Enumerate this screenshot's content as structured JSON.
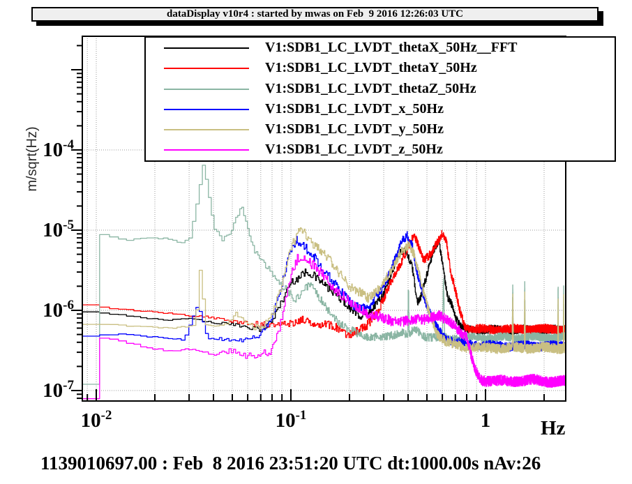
{
  "window": {
    "title": "dataDisplay v10r4 : started by mwas on Feb  9 2016 12:26:03 UTC"
  },
  "footer": {
    "status_line": "1139010697.00 : Feb  8 2016 23:51:20 UTC dt:1000.00s nAv:26"
  },
  "legend": {
    "entries": [
      {
        "label": "V1:SDB1_LC_LVDT_thetaX_50Hz__FFT",
        "color": "#000000"
      },
      {
        "label": "V1:SDB1_LC_LVDT_thetaY_50Hz",
        "color": "#ff0000"
      },
      {
        "label": "V1:SDB1_LC_LVDT_thetaZ_50Hz",
        "color": "#8ab5a3"
      },
      {
        "label": "V1:SDB1_LC_LVDT_x_50Hz",
        "color": "#0000ff"
      },
      {
        "label": "V1:SDB1_LC_LVDT_y_50Hz",
        "color": "#c9bf82"
      },
      {
        "label": "V1:SDB1_LC_LVDT_z_50Hz",
        "color": "#ff00ff"
      }
    ]
  },
  "axes": {
    "x": {
      "unit": "Hz",
      "ticks": [
        {
          "base": "10",
          "exp": "-2"
        },
        {
          "base": "10",
          "exp": "-1"
        },
        {
          "base": "1",
          "exp": ""
        }
      ]
    },
    "y": {
      "unit": "m/sqrt(Hz)",
      "ticks": [
        {
          "base": "10",
          "exp": "-4"
        },
        {
          "base": "10",
          "exp": "-5"
        },
        {
          "base": "10",
          "exp": "-6"
        },
        {
          "base": "10",
          "exp": "-7"
        }
      ]
    }
  },
  "chart_data": {
    "type": "line",
    "title": "",
    "xlabel": "Hz",
    "ylabel": "m/sqrt(Hz)",
    "xscale": "log",
    "yscale": "log",
    "xlim": [
      0.0085,
      2.58
    ],
    "ylim": [
      7.4e-08,
      0.0026
    ],
    "x_ticks_labeled": [
      0.01,
      0.1,
      1
    ],
    "y_ticks_labeled": [
      0.0001,
      1e-05,
      1e-06,
      1e-07
    ],
    "grid": "dotted gray: vertical lines at every log multiple, horizontal lines at decades",
    "legend_position": "top",
    "series": [
      {
        "name": "V1:SDB1_LC_LVDT_thetaX_50Hz__FFT",
        "color": "#000000",
        "noise": 0.05,
        "points": [
          [
            0.0085,
            9.5e-07
          ],
          [
            0.015,
            8.5e-07
          ],
          [
            0.022,
            7.5e-07
          ],
          [
            0.03,
            8e-07
          ],
          [
            0.04,
            7e-07
          ],
          [
            0.055,
            6.5e-07
          ],
          [
            0.068,
            5.8e-07
          ],
          [
            0.08,
            7.5e-07
          ],
          [
            0.09,
            1.3e-06
          ],
          [
            0.1,
            2.3e-06
          ],
          [
            0.12,
            3e-06
          ],
          [
            0.14,
            2.4e-06
          ],
          [
            0.16,
            1.8e-06
          ],
          [
            0.19,
            1.2e-06
          ],
          [
            0.23,
            8.5e-07
          ],
          [
            0.26,
            1e-06
          ],
          [
            0.3,
            1.7e-06
          ],
          [
            0.33,
            3e-06
          ],
          [
            0.36,
            5e-06
          ],
          [
            0.385,
            5.8e-06
          ],
          [
            0.42,
            3.5e-06
          ],
          [
            0.445,
            1.3e-06
          ],
          [
            0.47,
            1.6e-06
          ],
          [
            0.5,
            2.8e-06
          ],
          [
            0.54,
            5.5e-06
          ],
          [
            0.575,
            7.5e-06
          ],
          [
            0.61,
            3e-06
          ],
          [
            0.64,
            1.5e-06
          ],
          [
            0.67,
            1.2e-06
          ],
          [
            0.7,
            8e-07
          ],
          [
            0.75,
            6e-07
          ],
          [
            0.85,
            5.7e-07
          ],
          [
            1.3,
            5.7e-07
          ],
          [
            2.0,
            5.7e-07
          ],
          [
            2.58,
            5.7e-07
          ]
        ]
      },
      {
        "name": "V1:SDB1_LC_LVDT_thetaY_50Hz",
        "color": "#ff0000",
        "noise": 0.055,
        "points": [
          [
            0.0085,
            1.15e-06
          ],
          [
            0.015,
            1e-06
          ],
          [
            0.025,
            9e-07
          ],
          [
            0.04,
            8e-07
          ],
          [
            0.06,
            7e-07
          ],
          [
            0.08,
            6.5e-07
          ],
          [
            0.1,
            7e-07
          ],
          [
            0.12,
            7.5e-07
          ],
          [
            0.14,
            7e-07
          ],
          [
            0.17,
            6e-07
          ],
          [
            0.2,
            5e-07
          ],
          [
            0.24,
            6e-07
          ],
          [
            0.28,
            1e-06
          ],
          [
            0.32,
            2e-06
          ],
          [
            0.36,
            3.5e-06
          ],
          [
            0.4,
            6.5e-06
          ],
          [
            0.43,
            8.5e-06
          ],
          [
            0.455,
            6e-06
          ],
          [
            0.48,
            4e-06
          ],
          [
            0.52,
            5e-06
          ],
          [
            0.56,
            7e-06
          ],
          [
            0.605,
            9.5e-06
          ],
          [
            0.63,
            7e-06
          ],
          [
            0.66,
            3e-06
          ],
          [
            0.69,
            2e-06
          ],
          [
            0.73,
            1.1e-06
          ],
          [
            0.78,
            6.5e-07
          ],
          [
            0.85,
            5.8e-07
          ],
          [
            1.3,
            5.8e-07
          ],
          [
            2.0,
            5.8e-07
          ],
          [
            2.58,
            5.8e-07
          ]
        ]
      },
      {
        "name": "V1:SDB1_LC_LVDT_thetaZ_50Hz",
        "color": "#8ab5a3",
        "noise": 0.05,
        "points": [
          [
            0.0085,
            1.2e-07
          ],
          [
            0.0088,
            9.5e-06
          ],
          [
            0.011,
            8.5e-06
          ],
          [
            0.014,
            7.5e-06
          ],
          [
            0.018,
            8e-06
          ],
          [
            0.023,
            7.8e-06
          ],
          [
            0.027,
            6.8e-06
          ],
          [
            0.03,
            8e-06
          ],
          [
            0.033,
            2.5e-05
          ],
          [
            0.035,
            6.5e-05
          ],
          [
            0.037,
            3.5e-05
          ],
          [
            0.04,
            1.1e-05
          ],
          [
            0.044,
            7.5e-06
          ],
          [
            0.049,
            9e-06
          ],
          [
            0.053,
            1.6e-05
          ],
          [
            0.056,
            1.9e-05
          ],
          [
            0.06,
            1e-05
          ],
          [
            0.065,
            5.5e-06
          ],
          [
            0.072,
            3.8e-06
          ],
          [
            0.082,
            2.8e-06
          ],
          [
            0.095,
            1.7e-06
          ],
          [
            0.105,
            1.3e-06
          ],
          [
            0.115,
            1.9e-06
          ],
          [
            0.125,
            2.1e-06
          ],
          [
            0.14,
            1.4e-06
          ],
          [
            0.16,
            9e-07
          ],
          [
            0.19,
            6e-07
          ],
          [
            0.23,
            4.8e-07
          ],
          [
            0.3,
            4.5e-07
          ],
          [
            0.37,
            5.5e-07
          ],
          [
            0.398,
            4.8e-07
          ],
          [
            0.401,
            2.6e-06
          ],
          [
            0.404,
            4.8e-07
          ],
          [
            0.43,
            6e-07
          ],
          [
            0.48,
            4.8e-07
          ],
          [
            0.6,
            4.5e-07
          ],
          [
            0.608,
            2.4e-06
          ],
          [
            0.616,
            4.5e-07
          ],
          [
            0.75,
            4.5e-07
          ],
          [
            1.0,
            4.6e-07
          ],
          [
            1.37,
            4.6e-07
          ],
          [
            1.38,
            2.2e-06
          ],
          [
            1.39,
            4.6e-07
          ],
          [
            1.58,
            4.6e-07
          ],
          [
            1.59,
            2.2e-06
          ],
          [
            1.6,
            4.6e-07
          ],
          [
            2.0,
            4.6e-07
          ],
          [
            2.35,
            4.6e-07
          ],
          [
            2.36,
            2.2e-06
          ],
          [
            2.37,
            4.6e-07
          ],
          [
            2.51,
            4.6e-07
          ],
          [
            2.52,
            2.2e-06
          ],
          [
            2.53,
            4.6e-07
          ],
          [
            2.58,
            4.6e-07
          ]
        ]
      },
      {
        "name": "V1:SDB1_LC_LVDT_x_50Hz",
        "color": "#0000ff",
        "noise": 0.055,
        "points": [
          [
            0.0085,
            4.8e-07
          ],
          [
            0.013,
            5e-07
          ],
          [
            0.02,
            4.6e-07
          ],
          [
            0.028,
            4.3e-07
          ],
          [
            0.033,
            1.2e-06
          ],
          [
            0.037,
            4.5e-07
          ],
          [
            0.05,
            4.2e-07
          ],
          [
            0.065,
            4.5e-07
          ],
          [
            0.078,
            7e-07
          ],
          [
            0.088,
            1.8e-06
          ],
          [
            0.098,
            5e-06
          ],
          [
            0.107,
            7.8e-06
          ],
          [
            0.118,
            6e-06
          ],
          [
            0.135,
            4.2e-06
          ],
          [
            0.155,
            2.8e-06
          ],
          [
            0.18,
            1.7e-06
          ],
          [
            0.21,
            1.15e-06
          ],
          [
            0.25,
            1.05e-06
          ],
          [
            0.29,
            1.8e-06
          ],
          [
            0.33,
            3.5e-06
          ],
          [
            0.37,
            7e-06
          ],
          [
            0.395,
            8.5e-06
          ],
          [
            0.42,
            6.5e-06
          ],
          [
            0.445,
            3e-06
          ],
          [
            0.47,
            1.8e-06
          ],
          [
            0.5,
            1.1e-06
          ],
          [
            0.55,
            6.5e-07
          ],
          [
            0.62,
            4.5e-07
          ],
          [
            0.7,
            4e-07
          ],
          [
            0.85,
            3.7e-07
          ],
          [
            1.3,
            3.6e-07
          ],
          [
            2.0,
            3.6e-07
          ],
          [
            2.58,
            3.6e-07
          ]
        ]
      },
      {
        "name": "V1:SDB1_LC_LVDT_y_50Hz",
        "color": "#c9bf82",
        "noise": 0.06,
        "points": [
          [
            0.0085,
            6.8e-07
          ],
          [
            0.015,
            6.3e-07
          ],
          [
            0.025,
            6e-07
          ],
          [
            0.032,
            6.5e-07
          ],
          [
            0.034,
            3.7e-06
          ],
          [
            0.036,
            6.5e-07
          ],
          [
            0.045,
            6.5e-07
          ],
          [
            0.052,
            9e-07
          ],
          [
            0.058,
            7e-07
          ],
          [
            0.07,
            6e-07
          ],
          [
            0.08,
            8.5e-07
          ],
          [
            0.09,
            2.2e-06
          ],
          [
            0.1,
            6e-06
          ],
          [
            0.11,
            1e-05
          ],
          [
            0.12,
            8.5e-06
          ],
          [
            0.135,
            6.3e-06
          ],
          [
            0.155,
            4.3e-06
          ],
          [
            0.18,
            2.8e-06
          ],
          [
            0.21,
            1.8e-06
          ],
          [
            0.25,
            1.4e-06
          ],
          [
            0.29,
            2e-06
          ],
          [
            0.33,
            3.2e-06
          ],
          [
            0.37,
            5.5e-06
          ],
          [
            0.4,
            6.8e-06
          ],
          [
            0.43,
            5e-06
          ],
          [
            0.455,
            2.8e-06
          ],
          [
            0.48,
            1.6e-06
          ],
          [
            0.52,
            8.5e-07
          ],
          [
            0.57,
            5e-07
          ],
          [
            0.63,
            4e-07
          ],
          [
            0.72,
            3.6e-07
          ],
          [
            0.85,
            3.4e-07
          ],
          [
            1.37,
            3.4e-07
          ],
          [
            1.38,
            1.6e-06
          ],
          [
            1.39,
            3.4e-07
          ],
          [
            1.58,
            3.4e-07
          ],
          [
            1.59,
            1.6e-06
          ],
          [
            1.6,
            3.4e-07
          ],
          [
            2.0,
            3.4e-07
          ],
          [
            2.35,
            3.4e-07
          ],
          [
            2.36,
            1.6e-06
          ],
          [
            2.37,
            3.4e-07
          ],
          [
            2.51,
            3.4e-07
          ],
          [
            2.52,
            1.6e-06
          ],
          [
            2.53,
            3.4e-07
          ],
          [
            2.58,
            3.4e-07
          ]
        ]
      },
      {
        "name": "V1:SDB1_LC_LVDT_z_50Hz",
        "color": "#ff00ff",
        "noise": 0.065,
        "points": [
          [
            0.0085,
            8e-08
          ],
          [
            0.009,
            4.6e-07
          ],
          [
            0.013,
            4.2e-07
          ],
          [
            0.018,
            3.4e-07
          ],
          [
            0.024,
            3.1e-07
          ],
          [
            0.03,
            3.3e-07
          ],
          [
            0.04,
            2.9e-07
          ],
          [
            0.05,
            3.1e-07
          ],
          [
            0.06,
            2.7e-07
          ],
          [
            0.07,
            2.7e-07
          ],
          [
            0.08,
            3.3e-07
          ],
          [
            0.09,
            8e-07
          ],
          [
            0.1,
            2.8e-06
          ],
          [
            0.11,
            4.8e-06
          ],
          [
            0.125,
            4e-06
          ],
          [
            0.14,
            3e-06
          ],
          [
            0.16,
            2.1e-06
          ],
          [
            0.185,
            1.5e-06
          ],
          [
            0.21,
            1.15e-06
          ],
          [
            0.25,
            9e-07
          ],
          [
            0.3,
            7.8e-07
          ],
          [
            0.36,
            7.2e-07
          ],
          [
            0.43,
            7.5e-07
          ],
          [
            0.5,
            8e-07
          ],
          [
            0.57,
            8.5e-07
          ],
          [
            0.63,
            7.5e-07
          ],
          [
            0.7,
            6.5e-07
          ],
          [
            0.8,
            4.5e-07
          ],
          [
            0.88,
            1.8e-07
          ],
          [
            0.95,
            1.35e-07
          ],
          [
            1.3,
            1.3e-07
          ],
          [
            1.7,
            1.35e-07
          ],
          [
            2.2,
            1.3e-07
          ],
          [
            2.58,
            1.3e-07
          ]
        ]
      }
    ]
  }
}
